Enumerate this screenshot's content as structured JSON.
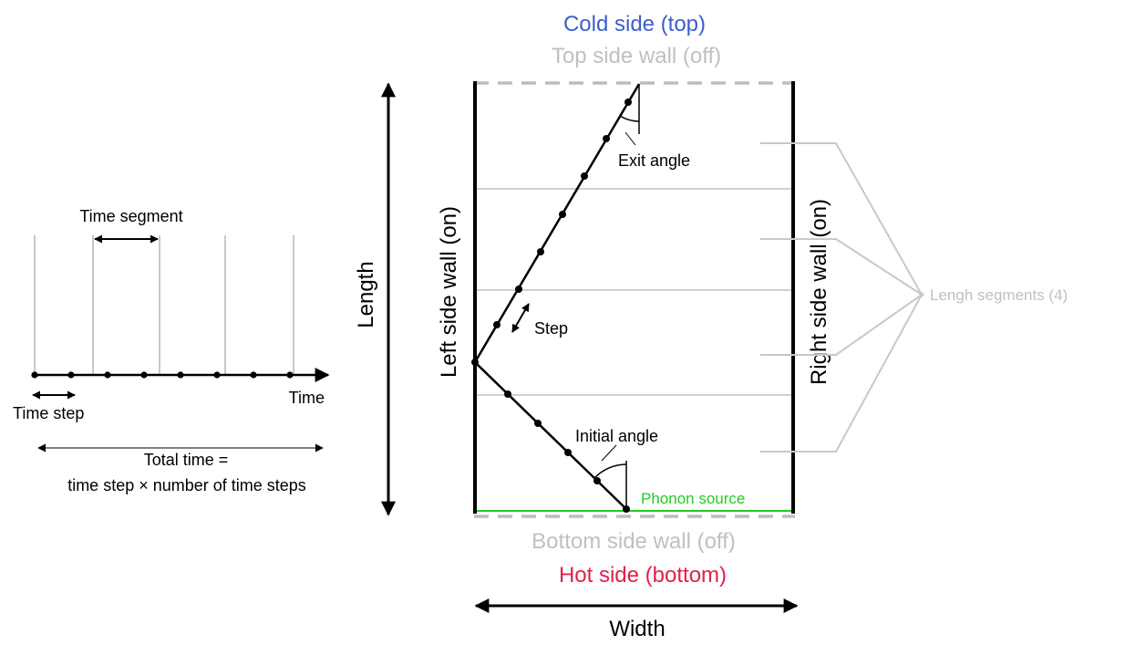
{
  "colors": {
    "cold": "#3a5fcd",
    "hot": "#e0204f",
    "phonon_source": "#22cc22",
    "muted": "#c0c0c0",
    "ink": "#000000"
  },
  "timeline": {
    "time_segment_label": "Time segment",
    "time_label": "Time",
    "time_step_label": "Time step",
    "total_time_line1": "Total time =",
    "total_time_line2": "time step × number of time steps"
  },
  "domain": {
    "cold_side": "Cold side (top)",
    "top_wall": "Top side wall (off)",
    "bottom_wall": "Bottom side wall (off)",
    "hot_side": "Hot side (bottom)",
    "left_wall": "Left side wall (on)",
    "right_wall": "Right side wall (on)",
    "length_label": "Length",
    "width_label": "Width",
    "phonon_source": "Phonon source",
    "exit_angle": "Exit angle",
    "initial_angle": "Initial angle",
    "step": "Step",
    "length_segments": "Lengh segments (4)"
  }
}
